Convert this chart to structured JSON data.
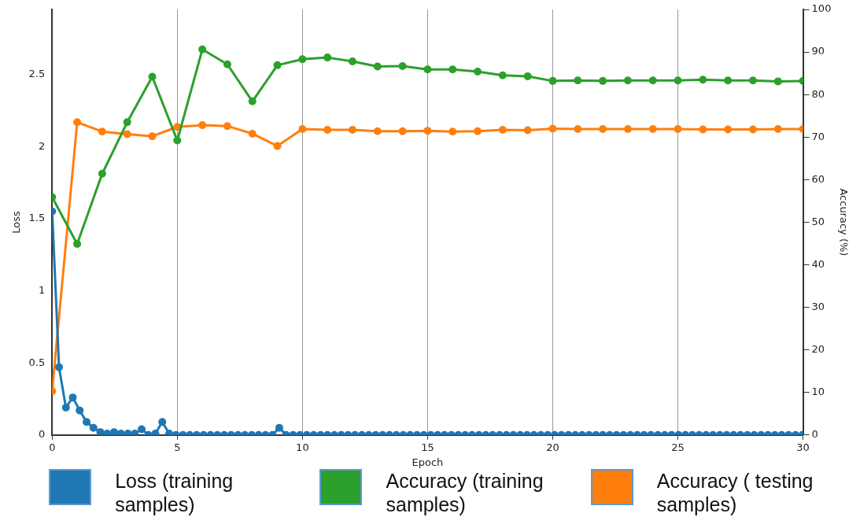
{
  "chart_data": {
    "type": "line",
    "xlabel": "Epoch",
    "ylabel": "Loss",
    "y2label": "Accuracy (%)",
    "xlim": [
      0,
      30
    ],
    "xticks": [
      0,
      5,
      10,
      15,
      20,
      25,
      30
    ],
    "ylim": [
      0,
      2.95
    ],
    "yticks": [
      0,
      0.5,
      1,
      1.5,
      2,
      2.5
    ],
    "y2lim": [
      0,
      100
    ],
    "y2ticks": [
      0,
      10,
      20,
      30,
      40,
      50,
      60,
      70,
      80,
      90,
      100
    ],
    "grid": "x",
    "legend": "bottom",
    "marker": "circle",
    "series": [
      {
        "name": "Loss (training samples)",
        "color": "#1f77b4",
        "x": [
          0,
          0.275,
          0.55,
          0.825,
          1.1,
          1.375,
          1.65,
          1.925,
          2.2,
          2.475,
          2.75,
          3.025,
          3.3,
          3.575,
          3.85,
          4.125,
          4.4,
          4.675,
          4.95,
          5.225,
          5.5,
          5.775,
          6.05,
          6.325,
          6.6,
          6.875,
          7.15,
          7.425,
          7.7,
          7.975,
          8.25,
          8.525,
          8.8,
          9.075,
          9.35,
          9.625,
          9.9,
          10.175,
          10.45,
          10.725,
          11,
          11.275,
          11.55,
          11.825,
          12.1,
          12.375,
          12.65,
          12.925,
          13.2,
          13.475,
          13.75,
          14.025,
          14.3,
          14.575,
          14.85,
          15.125,
          15.4,
          15.675,
          15.95,
          16.225,
          16.5,
          16.775,
          17.05,
          17.325,
          17.6,
          17.875,
          18.15,
          18.425,
          18.7,
          18.975,
          19.25,
          19.525,
          19.8,
          20.075,
          20.35,
          20.625,
          20.9,
          21.175,
          21.45,
          21.725,
          22,
          22.275,
          22.55,
          22.825,
          23.1,
          23.375,
          23.65,
          23.925,
          24.2,
          24.475,
          24.75,
          25.025,
          25.3,
          25.575,
          25.85,
          26.125,
          26.4,
          26.675,
          26.95,
          27.225,
          27.5,
          27.775,
          28.05,
          28.325,
          28.6,
          28.875,
          29.15,
          29.425,
          29.7,
          29.975
        ],
        "values": [
          1.55,
          0.47,
          0.19,
          0.26,
          0.17,
          0.09,
          0.05,
          0.02,
          0.01,
          0.02,
          0.01,
          0.01,
          0.01,
          0.04,
          0,
          0.01,
          0.09,
          0.01,
          0,
          0,
          0,
          0,
          0,
          0,
          0,
          0,
          0,
          0,
          0,
          0,
          0,
          0,
          0,
          0.05,
          0,
          0,
          0,
          0,
          0,
          0,
          0,
          0,
          0,
          0,
          0,
          0,
          0,
          0,
          0,
          0,
          0,
          0,
          0,
          0,
          0,
          0,
          0,
          0,
          0,
          0,
          0,
          0,
          0,
          0,
          0,
          0,
          0,
          0,
          0,
          0,
          0,
          0,
          0,
          0,
          0,
          0,
          0,
          0,
          0,
          0,
          0,
          0,
          0,
          0,
          0,
          0,
          0,
          0,
          0,
          0,
          0,
          0,
          0,
          0,
          0,
          0,
          0,
          0,
          0,
          0,
          0,
          0,
          0,
          0,
          0,
          0,
          0,
          0,
          0,
          0
        ]
      },
      {
        "name": "Accuracy (training samples)",
        "color": "#2ca02c",
        "axis": "y2",
        "x": [
          0,
          1,
          2,
          3,
          4,
          5,
          6,
          7,
          8,
          9,
          10,
          11,
          12,
          13,
          14,
          15,
          16,
          17,
          18,
          19,
          20,
          21,
          22,
          23,
          24,
          25,
          26,
          27,
          28,
          29,
          30
        ],
        "values": [
          55.9,
          44.9,
          61.4,
          73.5,
          84.2,
          69.2,
          90.6,
          87.1,
          78.4,
          86.9,
          88.3,
          88.7,
          87.8,
          86.6,
          86.7,
          85.9,
          85.9,
          85.4,
          84.5,
          84.3,
          83.2,
          83.3,
          83.2,
          83.3,
          83.3,
          83.3,
          83.5,
          83.3,
          83.3,
          83.1,
          83.2
        ]
      },
      {
        "name": "Accuracy ( testing samples)",
        "color": "#ff7f0e",
        "axis": "y2",
        "x": [
          0,
          1,
          2,
          3,
          4,
          5,
          6,
          7,
          8,
          9,
          10,
          11,
          12,
          13,
          14,
          15,
          16,
          17,
          18,
          19,
          20,
          21,
          22,
          23,
          24,
          25,
          26,
          27,
          28,
          29,
          30
        ],
        "values": [
          10.3,
          73.5,
          71.3,
          70.7,
          70.2,
          72.4,
          72.8,
          72.6,
          70.8,
          67.9,
          71.9,
          71.7,
          71.7,
          71.4,
          71.4,
          71.5,
          71.3,
          71.4,
          71.7,
          71.6,
          72.0,
          71.9,
          71.9,
          71.9,
          71.9,
          71.9,
          71.8,
          71.8,
          71.8,
          71.9,
          71.9
        ]
      }
    ]
  }
}
